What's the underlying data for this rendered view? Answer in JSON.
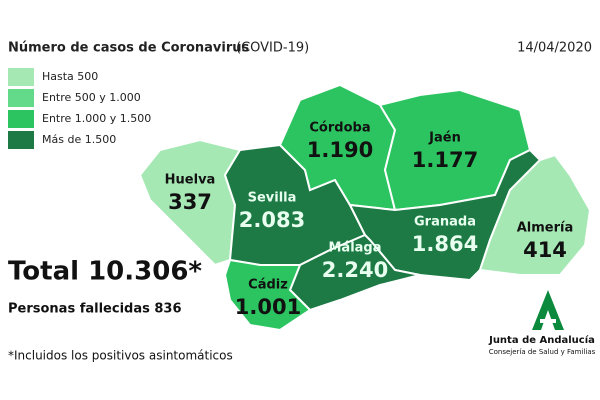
{
  "header": {
    "title": "Número de casos de Coronavirus",
    "subtitle": "(COVID-19)",
    "date": "14/04/2020"
  },
  "legend": [
    {
      "label": "Hasta 500",
      "color": "#a6e8b4"
    },
    {
      "label": "Entre 500 y 1.000",
      "color": "#63d98a"
    },
    {
      "label": "Entre 1.000 y 1.500",
      "color": "#2cc460"
    },
    {
      "label": "Más de 1.500",
      "color": "#1d7a45"
    }
  ],
  "provinces": [
    {
      "name": "Huelva",
      "value": "337",
      "color": "#a6e8b4",
      "text_color": "#111111"
    },
    {
      "name": "Sevilla",
      "value": "2.083",
      "color": "#1d7a45",
      "text_color": "#e8fff0"
    },
    {
      "name": "Córdoba",
      "value": "1.190",
      "color": "#2cc460",
      "text_color": "#111111"
    },
    {
      "name": "Jaén",
      "value": "1.177",
      "color": "#2cc460",
      "text_color": "#111111"
    },
    {
      "name": "Granada",
      "value": "1.864",
      "color": "#1d7a45",
      "text_color": "#e8fff0"
    },
    {
      "name": "Almería",
      "value": "414",
      "color": "#a6e8b4",
      "text_color": "#111111"
    },
    {
      "name": "Málaga",
      "value": "2.240",
      "color": "#1d7a45",
      "text_color": "#e8fff0"
    },
    {
      "name": "Cádiz",
      "value": "1.001",
      "color": "#2cc460",
      "text_color": "#111111"
    }
  ],
  "total": "Total 10.306*",
  "deaths": "Personas fallecidas 836",
  "footnote": "*Incluidos los positivos asintomáticos",
  "logo": {
    "name": "Junta de Andalucía",
    "subtitle": "Consejería de Salud y Familias"
  }
}
